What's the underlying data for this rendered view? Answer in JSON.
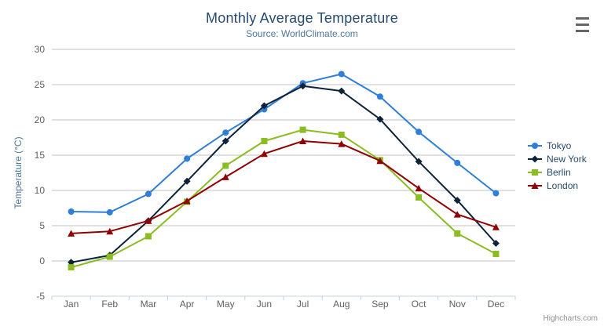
{
  "header": {
    "title": "Monthly Average Temperature",
    "subtitle": "Source: WorldClimate.com"
  },
  "credit": {
    "label": "Highcharts.com"
  },
  "export_menu": {
    "icon": "hamburger-icon"
  },
  "theme": {
    "title_color": "#274b6d",
    "subtitle_color": "#4d759e",
    "axis_title_color": "#4d759e",
    "tick_label_color": "#606060",
    "grid_color": "#C0C0C0",
    "axis_line_color": "#C0D0E0",
    "legend_text_color": "#274b6d",
    "credit_color": "#909090"
  },
  "chart_data": {
    "type": "line",
    "title": "Monthly Average Temperature",
    "subtitle": "Source: WorldClimate.com",
    "categories": [
      "Jan",
      "Feb",
      "Mar",
      "Apr",
      "May",
      "Jun",
      "Jul",
      "Aug",
      "Sep",
      "Oct",
      "Nov",
      "Dec"
    ],
    "xlabel": "",
    "ylabel": "Temperature (°C)",
    "ylim": [
      -5,
      30
    ],
    "ytick_step": 5,
    "yticks": [
      -5,
      0,
      5,
      10,
      15,
      20,
      25,
      30
    ],
    "grid": true,
    "legend_position": "right",
    "series": [
      {
        "name": "Tokyo",
        "color": "#2f7ed8",
        "marker": "circle",
        "values": [
          7.0,
          6.9,
          9.5,
          14.5,
          18.2,
          21.5,
          25.2,
          26.5,
          23.3,
          18.3,
          13.9,
          9.6
        ]
      },
      {
        "name": "New York",
        "color": "#0d233a",
        "marker": "diamond",
        "values": [
          -0.2,
          0.8,
          5.7,
          11.3,
          17.0,
          22.0,
          24.8,
          24.1,
          20.1,
          14.1,
          8.6,
          2.5
        ]
      },
      {
        "name": "Berlin",
        "color": "#8bbc21",
        "marker": "square",
        "values": [
          -0.9,
          0.6,
          3.5,
          8.4,
          13.5,
          17.0,
          18.6,
          17.9,
          14.3,
          9.0,
          3.9,
          1.0
        ]
      },
      {
        "name": "London",
        "color": "#910000",
        "marker": "triangle",
        "values": [
          3.9,
          4.2,
          5.7,
          8.5,
          11.9,
          15.2,
          17.0,
          16.6,
          14.2,
          10.3,
          6.6,
          4.8
        ]
      }
    ]
  }
}
